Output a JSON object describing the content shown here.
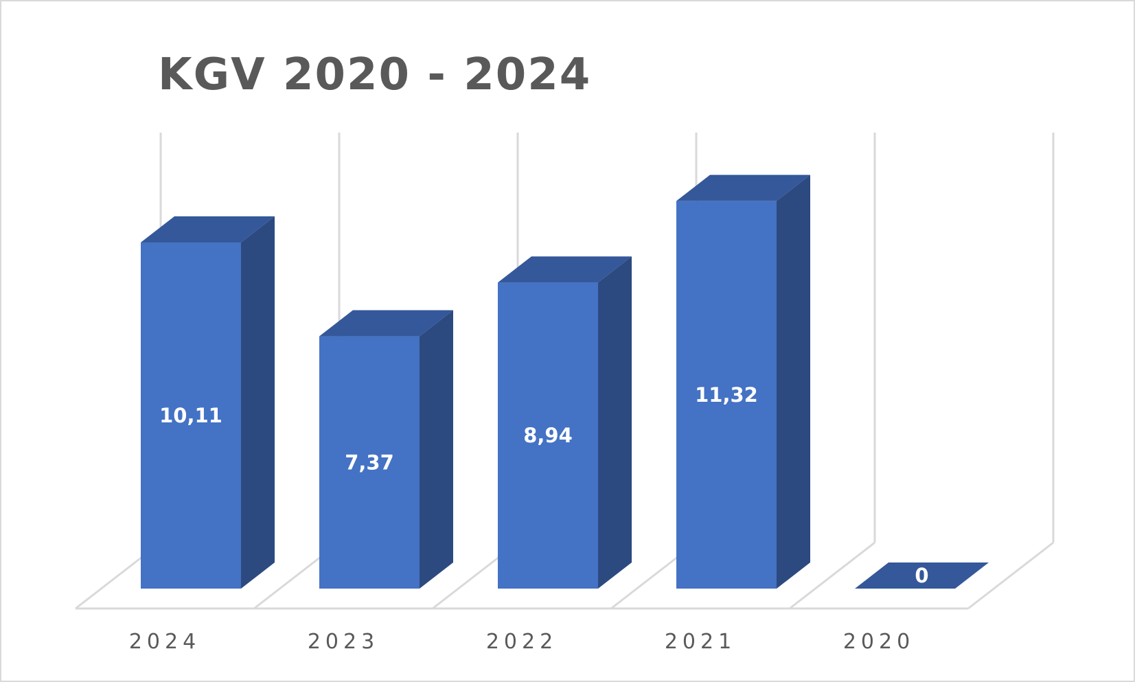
{
  "chart_data": {
    "type": "bar",
    "title": "KGV 2020 - 2024",
    "categories": [
      "2024",
      "2023",
      "2022",
      "2021",
      "2020"
    ],
    "values": [
      10.11,
      7.37,
      8.94,
      11.32,
      0
    ],
    "data_labels": [
      "10,11",
      "7,37",
      "8,94",
      "11,32",
      "0"
    ],
    "three_d": true,
    "grid": true,
    "legend": "none",
    "colors": {
      "bar_front": "#4472c4",
      "bar_side": "#2c4a80",
      "bar_top": "#345899",
      "grid": "#d9d9d9",
      "label": "#ffffff",
      "axis_text": "#595959"
    }
  }
}
